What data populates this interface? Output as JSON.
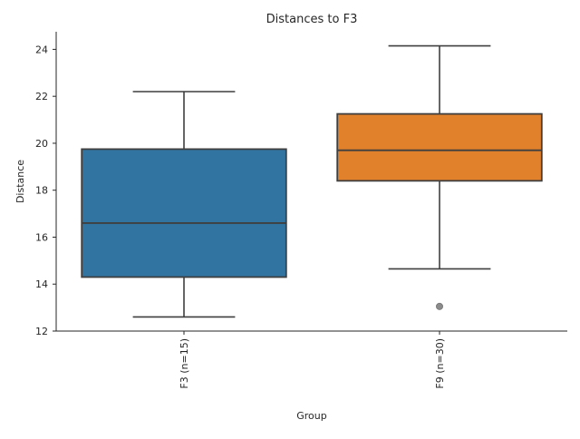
{
  "chart_data": {
    "type": "box",
    "title": "Distances to F3",
    "xlabel": "Group",
    "ylabel": "Distance",
    "ylim": [
      12,
      24.75
    ],
    "yticks": [
      12,
      14,
      16,
      18,
      20,
      22,
      24
    ],
    "grid": false,
    "categories": [
      "F3 (n=15)",
      "F9 (n=30)"
    ],
    "boxes": [
      {
        "name": "F3 (n=15)",
        "whisker_low": 12.6,
        "q1": 14.3,
        "median": 16.6,
        "q3": 19.75,
        "whisker_high": 22.2,
        "outliers": [],
        "color": "#3274a1"
      },
      {
        "name": "F9 (n=30)",
        "whisker_low": 14.65,
        "q1": 18.4,
        "median": 19.7,
        "q3": 21.25,
        "whisker_high": 24.15,
        "outliers": [
          13.05
        ],
        "color": "#e1812c"
      }
    ]
  }
}
